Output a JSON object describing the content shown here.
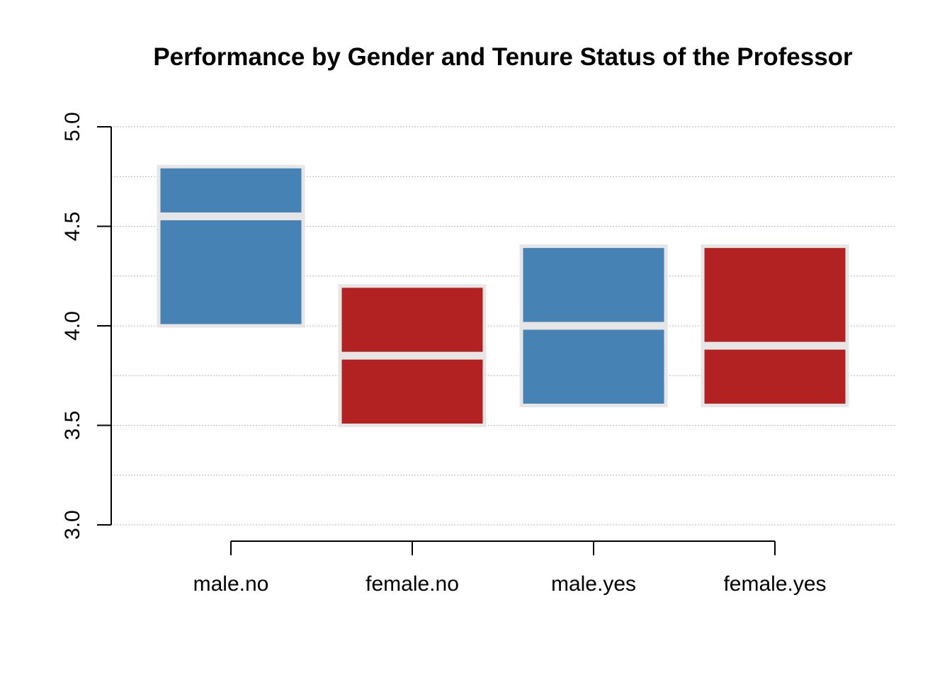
{
  "chart_data": {
    "type": "crossbar",
    "title": "Performance by Gender and Tenure Status of the Professor",
    "xlabel": "",
    "ylabel": "",
    "categories": [
      "male.no",
      "female.no",
      "male.yes",
      "female.yes"
    ],
    "ylim": [
      3.0,
      5.0
    ],
    "yticks": [
      3.0,
      3.5,
      4.0,
      4.5,
      5.0
    ],
    "ytick_labels": [
      "3.0",
      "3.5",
      "4.0",
      "4.5",
      "5.0"
    ],
    "grid": true,
    "boxes": [
      {
        "category": "male.no",
        "lower": 4.0,
        "center": 4.55,
        "upper": 4.8,
        "color": "#4682B4"
      },
      {
        "category": "female.no",
        "lower": 3.5,
        "center": 3.85,
        "upper": 4.2,
        "color": "#B22222"
      },
      {
        "category": "male.yes",
        "lower": 3.6,
        "center": 4.0,
        "upper": 4.4,
        "color": "#4682B4"
      },
      {
        "category": "female.yes",
        "lower": 3.6,
        "center": 3.9,
        "upper": 4.4,
        "color": "#B22222"
      }
    ]
  },
  "colors": {
    "male": "#4682B4",
    "female": "#B22222",
    "outline": "#e6e6e6",
    "grid": "#b3b3b3",
    "axis": "#000000"
  }
}
